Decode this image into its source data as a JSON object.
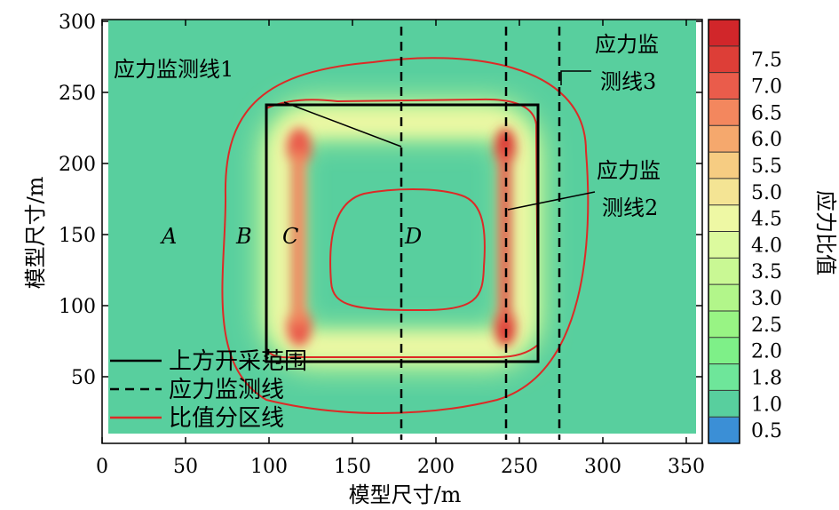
{
  "chart_data": {
    "type": "heatmap",
    "title": "",
    "xlabel": "模型尺寸/m",
    "ylabel": "模型尺寸/m",
    "xlim": [
      0,
      360
    ],
    "ylim": [
      0,
      300
    ],
    "x_ticks": [
      "0",
      "50",
      "100",
      "150",
      "200",
      "250",
      "300",
      "350"
    ],
    "y_ticks": [
      "50",
      "100",
      "150",
      "200",
      "250",
      "300"
    ],
    "colorbar": {
      "label": "应力比值",
      "levels": [
        "0.5",
        "1.0",
        "1.8",
        "2.0",
        "2.5",
        "3.0",
        "3.5",
        "4.0",
        "4.5",
        "5.0",
        "5.5",
        "6.0",
        "6.5",
        "7.0",
        "7.5"
      ],
      "colors": [
        "#3b8fd6",
        "#58cf9e",
        "#6ee69a",
        "#7ef088",
        "#98f484",
        "#b2f68a",
        "#c9f894",
        "#dcfa9e",
        "#eef8a4",
        "#f4e494",
        "#f6cc82",
        "#f5a86d",
        "#f3875e",
        "#ea5c4b",
        "#dd3e37",
        "#d1262a"
      ]
    },
    "mining_area": {
      "x": [
        98,
        260
      ],
      "y": [
        60,
        240
      ]
    },
    "monitoring_lines_x": [
      178,
      242,
      274
    ],
    "inner_contour": {
      "x": [
        140,
        220
      ],
      "y": [
        98,
        180
      ]
    },
    "outer_contour": {
      "x": [
        85,
        297
      ],
      "y": [
        24,
        278
      ]
    },
    "zones": [
      {
        "label": "A",
        "x": 37,
        "y": 150
      },
      {
        "label": "B",
        "x": 83,
        "y": 150
      },
      {
        "label": "C",
        "x": 110,
        "y": 150
      },
      {
        "label": "D",
        "x": 182,
        "y": 150
      }
    ],
    "annotations": [
      {
        "lines": [
          "应力监测线1"
        ],
        "at_x": 178,
        "at_y": 210
      },
      {
        "lines": [
          "应力监",
          "测线2"
        ],
        "at_x": 242,
        "at_y": 165
      },
      {
        "lines": [
          "应力监",
          "测线3"
        ],
        "at_x": 274,
        "at_y": 258
      }
    ],
    "legend": {
      "position": "bottom-left",
      "items": [
        {
          "label": "上方开采范围",
          "style": "solid",
          "color": "#000000"
        },
        {
          "label": "应力监测线",
          "style": "dashed",
          "color": "#000000"
        },
        {
          "label": "比值分区线",
          "style": "solid",
          "color": "#dd2a26"
        }
      ]
    }
  }
}
